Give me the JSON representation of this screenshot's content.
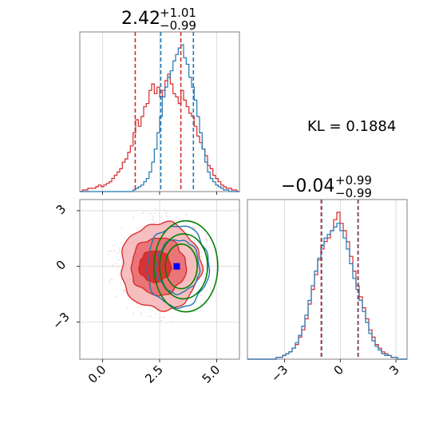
{
  "chart_data": {
    "type": "corner",
    "colors": {
      "red": "#d62728",
      "blue": "#1f77b4",
      "green": "#008000",
      "marker": "#0000ff",
      "grid": "#b0b0b0",
      "fill_dark": "#d62728",
      "fill_mid": "#e8676a",
      "fill_light": "#f4b3b4"
    },
    "parameters": [
      {
        "id": "p1",
        "title_median": "2.42",
        "title_plus": "+1.01",
        "title_minus": "−0.99",
        "xlim": [
          -1.0,
          6.0
        ],
        "xticks": [
          0.0,
          2.5,
          5.0
        ],
        "xtick_labels": [
          "0.0",
          "2.5",
          "5.0"
        ],
        "quantiles_red": [
          1.43,
          3.43
        ],
        "quantiles_blue": [
          2.55,
          3.98
        ],
        "red_hist": [
          0,
          1,
          1,
          2,
          2,
          2,
          3,
          4,
          3,
          4,
          5,
          6,
          8,
          10,
          12,
          14,
          18,
          20,
          24,
          28,
          36,
          44,
          40,
          46,
          52,
          54,
          62,
          66,
          60,
          64,
          58,
          62,
          68,
          72,
          66,
          60,
          58,
          54,
          62,
          56,
          52,
          48,
          46,
          40,
          34,
          30,
          26,
          22,
          16,
          14,
          10,
          8,
          6,
          4,
          3,
          2,
          2,
          1,
          1,
          0
        ],
        "blue_hist": [
          0,
          0,
          0,
          0,
          0,
          0,
          0,
          0,
          0,
          0,
          0,
          0,
          0,
          0,
          0,
          0,
          0,
          0,
          0,
          0,
          1,
          2,
          3,
          4,
          6,
          8,
          12,
          18,
          26,
          36,
          46,
          58,
          64,
          70,
          74,
          80,
          84,
          88,
          90,
          82,
          78,
          70,
          64,
          56,
          46,
          36,
          26,
          18,
          12,
          8,
          6,
          4,
          3,
          2,
          1,
          1,
          0,
          0,
          0,
          0
        ]
      },
      {
        "id": "p2",
        "title_median": "−0.04",
        "title_plus": "+0.99",
        "title_minus": "−0.99",
        "xlim": [
          -5.0,
          3.6
        ],
        "xticks": [
          -3,
          0,
          3
        ],
        "xtick_labels": [
          "−3",
          "0",
          "3"
        ],
        "quantiles_red": [
          -1.03,
          0.95
        ],
        "quantiles_blue": [
          -1.0,
          0.97
        ],
        "red_hist": [
          0,
          0,
          0,
          0,
          0,
          0,
          0,
          0,
          0,
          1,
          1,
          2,
          3,
          4,
          6,
          8,
          12,
          16,
          22,
          30,
          38,
          46,
          54,
          60,
          64,
          66,
          70,
          76,
          80,
          74,
          70,
          64,
          56,
          48,
          40,
          34,
          28,
          22,
          16,
          12,
          8,
          6,
          4,
          3,
          2,
          1,
          1,
          0,
          0,
          0
        ],
        "blue_hist": [
          0,
          0,
          0,
          0,
          0,
          0,
          0,
          0,
          0,
          1,
          1,
          2,
          3,
          4,
          6,
          9,
          13,
          18,
          24,
          32,
          40,
          48,
          55,
          62,
          66,
          68,
          70,
          72,
          74,
          70,
          66,
          60,
          52,
          44,
          38,
          32,
          26,
          20,
          14,
          10,
          7,
          5,
          3,
          2,
          2,
          1,
          1,
          0,
          0,
          0
        ]
      }
    ],
    "joint": {
      "xlim": [
        -1.0,
        6.0
      ],
      "ylim": [
        -5.0,
        3.6
      ],
      "yticks": [
        -3,
        0,
        3
      ],
      "ytick_labels": [
        "−3",
        "0",
        "3"
      ],
      "point": [
        3.25,
        0.0
      ],
      "red_levels": [
        {
          "cx": 2.55,
          "cy": 0.0,
          "rx": 1.75,
          "ry": 2.35
        },
        {
          "cx": 2.45,
          "cy": 0.0,
          "rx": 1.2,
          "ry": 1.55
        },
        {
          "cx": 2.3,
          "cy": 0.0,
          "rx": 0.7,
          "ry": 0.85
        }
      ],
      "blue_levels": [
        {
          "cx": 3.3,
          "cy": 0.0,
          "rx": 1.35,
          "ry": 2.2
        },
        {
          "cx": 3.3,
          "cy": 0.0,
          "rx": 0.95,
          "ry": 1.45
        }
      ],
      "green_levels": [
        {
          "cx": 3.65,
          "cy": 0.0,
          "rx": 1.4,
          "ry": 2.45
        },
        {
          "cx": 3.55,
          "cy": 0.0,
          "rx": 1.05,
          "ry": 1.75
        },
        {
          "cx": 3.45,
          "cy": 0.0,
          "rx": 0.7,
          "ry": 1.2
        }
      ]
    },
    "annotation": {
      "label": "KL = 0.1884"
    },
    "grid": true
  }
}
